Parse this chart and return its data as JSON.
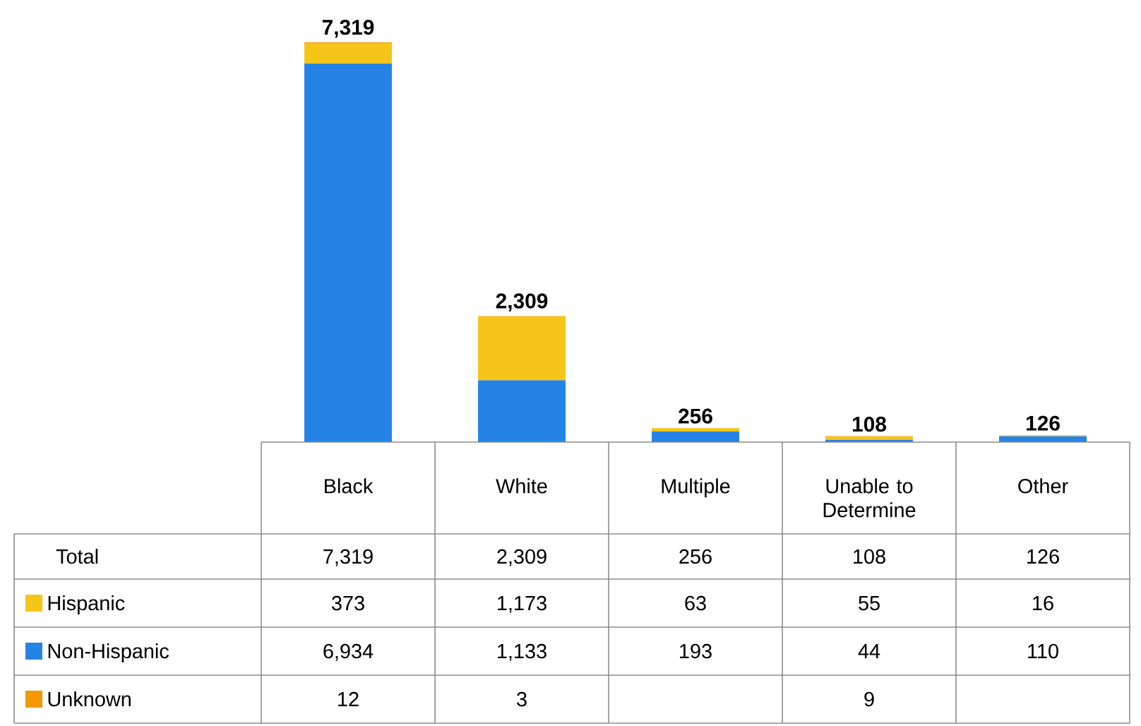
{
  "chart_data": {
    "type": "bar",
    "stacked": true,
    "legend": "bottom",
    "categories": [
      "Black",
      "White",
      "Multiple",
      "Unable to Determine",
      "Other"
    ],
    "series": [
      {
        "name": "Non-Hispanic",
        "color": "#2683e6",
        "values": [
          6934,
          1133,
          193,
          44,
          110
        ],
        "value_labels": [
          "6,934",
          "1,133",
          "193",
          "44",
          "110"
        ]
      },
      {
        "name": "Hispanic",
        "color": "#f5c518",
        "values": [
          373,
          1173,
          63,
          55,
          16
        ],
        "value_labels": [
          "373",
          "1,173",
          "63",
          "55",
          "16"
        ]
      },
      {
        "name": "Unknown",
        "color": "#f39800",
        "values": [
          12,
          3,
          null,
          9,
          null
        ],
        "value_labels": [
          "12",
          "3",
          null,
          "9",
          null
        ]
      }
    ],
    "totals": [
      "7,319",
      "2,309",
      "256",
      "108",
      "126"
    ],
    "annotations": [
      "Total"
    ]
  }
}
